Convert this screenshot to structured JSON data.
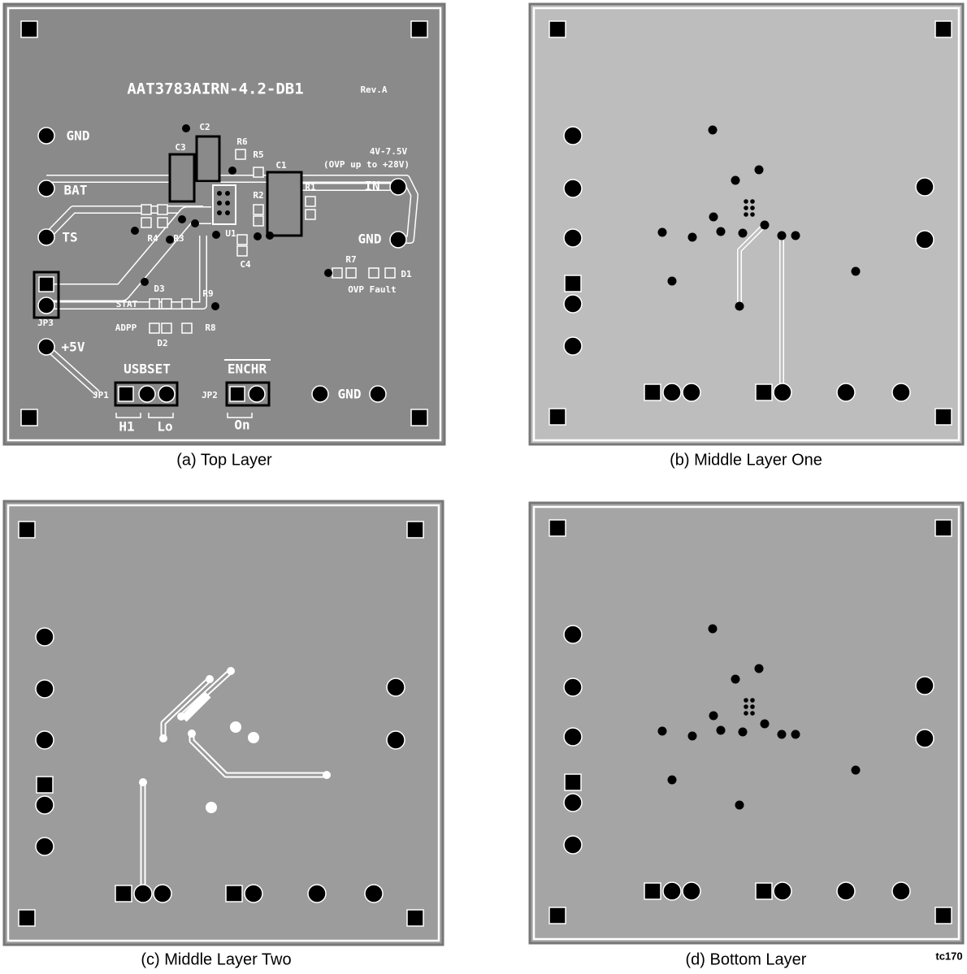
{
  "panels": [
    {
      "caption": "(a) Top Layer",
      "labels": [
        "AAT3783AIRN-4.2-DB1",
        "Rev.A",
        "GND",
        "BAT",
        "TS",
        "IN",
        "4V-7.5V",
        "(OVP up to +28V)",
        "GND",
        "C2",
        "C3",
        "R6",
        "R5",
        "C1",
        "R1",
        "R2",
        "R4",
        "R3",
        "U1",
        "C4",
        "R7",
        "D1",
        "OVP Fault",
        "D3",
        "R9",
        "STAT",
        "ADPP",
        "R8",
        "D2",
        "JP3",
        "+5V",
        "USBSET",
        "ENCHR",
        "JP1",
        "JP2",
        "H1",
        "Lo",
        "On",
        "GND"
      ]
    },
    {
      "caption": "(b) Middle Layer One"
    },
    {
      "caption": "(c) Middle Layer Two"
    },
    {
      "caption": "(d) Bottom Layer"
    }
  ],
  "figure_id": "tc170"
}
